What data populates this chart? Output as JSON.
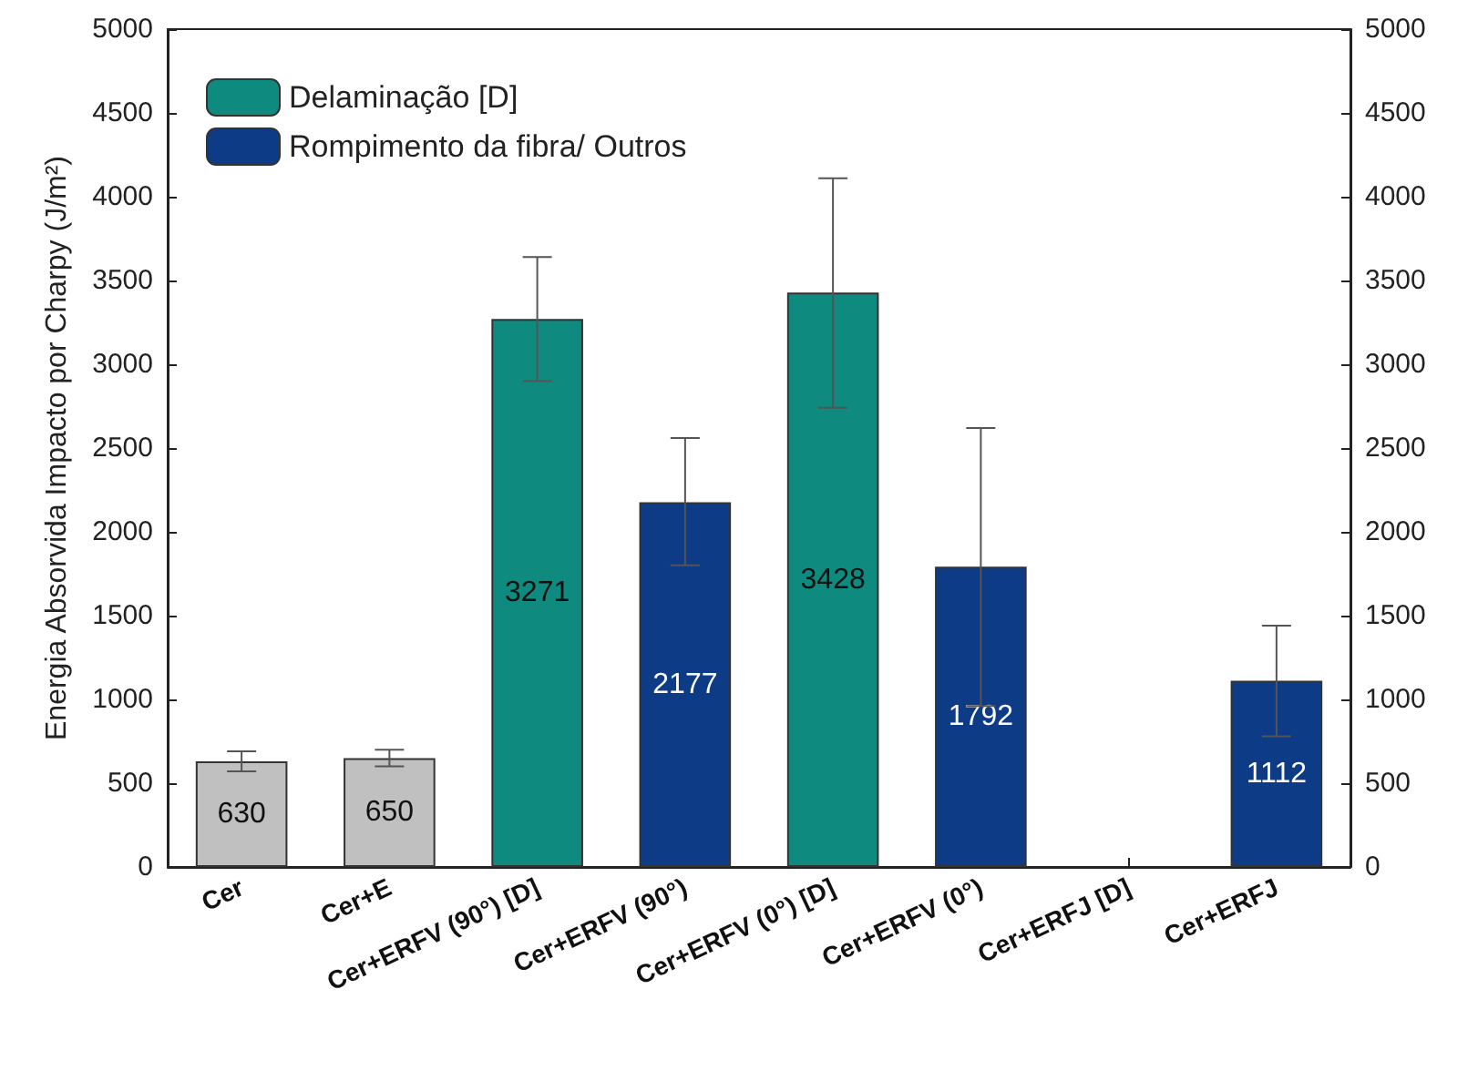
{
  "chart_data": {
    "type": "bar",
    "ylabel": "Energia Absorvida Impacto por Charpy (J/m²)",
    "categories": [
      "Cer",
      "Cer+E",
      "Cer+ERFV (90°) [D]",
      "Cer+ERFV (90°)",
      "Cer+ERFV (0°) [D]",
      "Cer+ERFV (0°)",
      "Cer+ERFJ [D]",
      "Cer+ERFJ"
    ],
    "series": [
      {
        "color": "#c0c0c0",
        "values": [
          630,
          650,
          null,
          null,
          null,
          null,
          null,
          null
        ],
        "errors": [
          [
            570,
            690
          ],
          [
            600,
            700
          ],
          null,
          null,
          null,
          null,
          null,
          null
        ]
      },
      {
        "name": "Delaminação [D]",
        "color": "#0e8a7e",
        "values": [
          null,
          null,
          3271,
          null,
          3428,
          null,
          null,
          null
        ],
        "errors": [
          null,
          null,
          [
            2900,
            3640
          ],
          null,
          [
            2740,
            4110
          ],
          null,
          null,
          null
        ]
      },
      {
        "name": "Rompimento da fibra/ Outros",
        "color": "#0d3b85",
        "values": [
          null,
          null,
          null,
          2177,
          null,
          1792,
          null,
          1112
        ],
        "errors": [
          null,
          null,
          null,
          [
            1800,
            2560
          ],
          null,
          [
            960,
            2620
          ],
          null,
          [
            780,
            1440
          ]
        ]
      }
    ],
    "ylim": [
      0,
      5000
    ],
    "yticks": [
      0,
      500,
      1000,
      1500,
      2000,
      2500,
      3000,
      3500,
      4000,
      4500,
      5000
    ],
    "y2lim": [
      0,
      5000
    ],
    "y2ticks": [
      0,
      500,
      1000,
      1500,
      2000,
      2500,
      3000,
      3500,
      4000,
      4500,
      5000
    ],
    "data_labels": true,
    "legend": "top left",
    "grid": false
  }
}
